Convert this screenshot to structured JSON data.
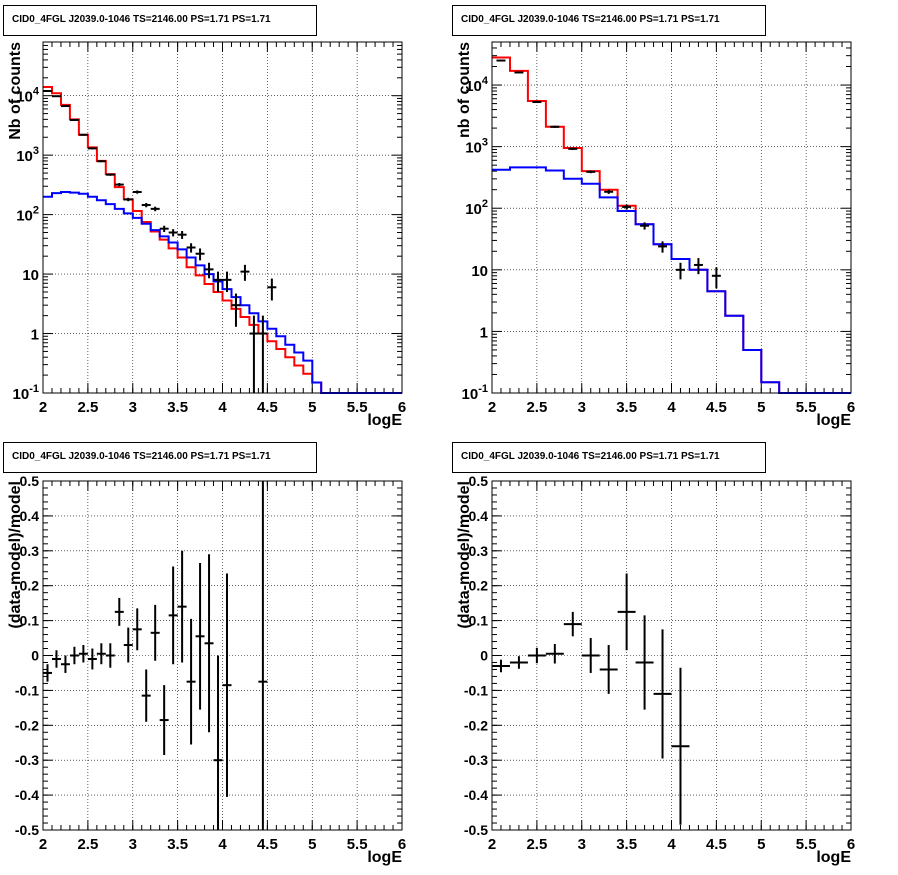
{
  "panels": [
    {
      "title": "CID0_4FGL J2039.0-1046 TS=2146.00 PS=1.71 PS=1.71"
    },
    {
      "title": "CID0_4FGL J2039.0-1046 TS=2146.00 PS=1.71 PS=1.71"
    },
    {
      "title": "CID0_4FGL J2039.0-1046 TS=2146.00 PS=1.71 PS=1.71"
    },
    {
      "title": "CID0_4FGL J2039.0-1046 TS=2146.00 PS=1.71 PS=1.71"
    }
  ],
  "colors": {
    "total_model": "#ff0000",
    "component_model": "#0000ff",
    "data": "#000000"
  },
  "chart_data": [
    {
      "type": "line",
      "title": "CID0_4FGL J2039.0-1046 TS=2146.00 PS=1.71 PS=1.71",
      "xlabel": "logE",
      "ylabel": "Nb of counts",
      "xlim": [
        2,
        6
      ],
      "ylim": [
        0.1,
        80000
      ],
      "yscale": "log",
      "grid": true,
      "x_ticks": [
        "2",
        "2.5",
        "3",
        "3.5",
        "4",
        "4.5",
        "5",
        "5.5",
        "6"
      ],
      "y_ticks": [
        "10^-1",
        "1",
        "10",
        "10^2",
        "10^3",
        "10^4"
      ],
      "bin_edges": [
        2.0,
        2.1,
        2.2,
        2.3,
        2.4,
        2.5,
        2.6,
        2.7,
        2.8,
        2.9,
        3.0,
        3.1,
        3.2,
        3.3,
        3.4,
        3.5,
        3.6,
        3.7,
        3.8,
        3.9,
        4.0,
        4.1,
        4.2,
        4.3,
        4.4,
        4.5,
        4.6,
        4.7,
        4.8,
        4.9,
        5.0,
        5.1,
        5.2,
        5.3,
        5.4,
        5.5,
        5.6,
        5.7,
        5.8,
        5.9,
        6.0
      ],
      "series": [
        {
          "values": [
            14000,
            11000,
            7000,
            4000,
            2200,
            1350,
            800,
            480,
            290,
            180,
            115,
            75,
            52,
            38,
            27,
            19,
            13,
            9.5,
            6.8,
            5,
            3.6,
            2.6,
            1.9,
            1.4,
            1.0,
            0.74,
            0.55,
            0.4,
            0.29,
            0.21,
            0.15,
            0.1,
            0.1,
            0.1,
            0.1,
            0.1,
            0.1,
            0.1,
            0.1,
            0.1
          ]
        },
        {
          "values": [
            200,
            230,
            240,
            235,
            225,
            200,
            175,
            150,
            125,
            105,
            88,
            70,
            55,
            43,
            34,
            26,
            19,
            14,
            10,
            7.5,
            5.6,
            4.1,
            3.0,
            2.2,
            1.6,
            1.2,
            0.9,
            0.65,
            0.48,
            0.35,
            0.15,
            0.1,
            0.1,
            0.1,
            0.1,
            0.1,
            0.1,
            0.1,
            0.1,
            0.1
          ]
        }
      ],
      "data_points": [
        {
          "x": 2.05,
          "y": 12000,
          "lo": 11800,
          "hi": 12200
        },
        {
          "x": 2.15,
          "y": 9800,
          "lo": 9600,
          "hi": 10000
        },
        {
          "x": 2.25,
          "y": 6700,
          "lo": 6550,
          "hi": 6850
        },
        {
          "x": 2.35,
          "y": 3900,
          "lo": 3800,
          "hi": 4000
        },
        {
          "x": 2.45,
          "y": 2200,
          "lo": 2130,
          "hi": 2270
        },
        {
          "x": 2.55,
          "y": 1300,
          "lo": 1250,
          "hi": 1350
        },
        {
          "x": 2.65,
          "y": 790,
          "lo": 760,
          "hi": 820
        },
        {
          "x": 2.75,
          "y": 470,
          "lo": 450,
          "hi": 490
        },
        {
          "x": 2.85,
          "y": 320,
          "lo": 300,
          "hi": 340
        },
        {
          "x": 2.95,
          "y": 180,
          "lo": 168,
          "hi": 192
        },
        {
          "x": 3.05,
          "y": 240,
          "lo": 225,
          "hi": 255
        },
        {
          "x": 3.15,
          "y": 145,
          "lo": 133,
          "hi": 157
        },
        {
          "x": 3.25,
          "y": 125,
          "lo": 114,
          "hi": 136
        },
        {
          "x": 3.35,
          "y": 58,
          "lo": 51,
          "hi": 65
        },
        {
          "x": 3.45,
          "y": 50,
          "lo": 43,
          "hi": 57
        },
        {
          "x": 3.55,
          "y": 46,
          "lo": 39,
          "hi": 53
        },
        {
          "x": 3.65,
          "y": 28,
          "lo": 23,
          "hi": 33
        },
        {
          "x": 3.75,
          "y": 22,
          "lo": 17,
          "hi": 27
        },
        {
          "x": 3.85,
          "y": 12,
          "lo": 8.5,
          "hi": 15.5
        },
        {
          "x": 3.95,
          "y": 8,
          "lo": 5,
          "hi": 11
        },
        {
          "x": 4.05,
          "y": 8,
          "lo": 5,
          "hi": 11
        },
        {
          "x": 4.15,
          "y": 3,
          "lo": 1.3,
          "hi": 4.7
        },
        {
          "x": 4.25,
          "y": 11,
          "lo": 7.7,
          "hi": 14.3
        },
        {
          "x": 4.35,
          "y": 1,
          "lo": 0.1,
          "hi": 2
        },
        {
          "x": 4.45,
          "y": 1,
          "lo": 0.1,
          "hi": 2
        },
        {
          "x": 4.55,
          "y": 6,
          "lo": 3.6,
          "hi": 8.4
        }
      ]
    },
    {
      "type": "line",
      "title": "CID0_4FGL J2039.0-1046 TS=2146.00 PS=1.71 PS=1.71",
      "xlabel": "logE",
      "ylabel": "nb of counts",
      "xlim": [
        2,
        6
      ],
      "ylim": [
        0.1,
        50000
      ],
      "yscale": "log",
      "grid": true,
      "x_ticks": [
        "2",
        "2.5",
        "3",
        "3.5",
        "4",
        "4.5",
        "5",
        "5.5",
        "6"
      ],
      "y_ticks": [
        "10^-1",
        "1",
        "10",
        "10^2",
        "10^3",
        "10^4"
      ],
      "bin_edges": [
        2.0,
        2.2,
        2.4,
        2.6,
        2.8,
        3.0,
        3.2,
        3.4,
        3.6,
        3.8,
        4.0,
        4.2,
        4.4,
        4.6,
        4.8,
        5.0,
        5.2,
        5.4,
        5.6,
        5.8,
        6.0
      ],
      "series": [
        {
          "values": [
            28000,
            17000,
            5500,
            2100,
            950,
            400,
            200,
            110,
            55,
            26,
            15,
            10,
            4.5,
            1.8,
            0.5,
            0.15,
            0.1,
            0.1,
            0.1,
            0.1
          ]
        },
        {
          "values": [
            420,
            460,
            460,
            410,
            300,
            250,
            150,
            90,
            55,
            26,
            15,
            10,
            4.5,
            1.8,
            0.5,
            0.15,
            0.1,
            0.1,
            0.1,
            0.1
          ]
        }
      ],
      "data_points": [
        {
          "x": 2.1,
          "y": 25000,
          "lo": 24700,
          "hi": 25300
        },
        {
          "x": 2.3,
          "y": 16000,
          "lo": 15750,
          "hi": 16250
        },
        {
          "x": 2.5,
          "y": 5300,
          "lo": 5150,
          "hi": 5450
        },
        {
          "x": 2.7,
          "y": 2100,
          "lo": 2010,
          "hi": 2190
        },
        {
          "x": 2.9,
          "y": 920,
          "lo": 880,
          "hi": 960
        },
        {
          "x": 3.1,
          "y": 390,
          "lo": 370,
          "hi": 410
        },
        {
          "x": 3.3,
          "y": 185,
          "lo": 171,
          "hi": 199
        },
        {
          "x": 3.5,
          "y": 105,
          "lo": 95,
          "hi": 115
        },
        {
          "x": 3.7,
          "y": 52,
          "lo": 45,
          "hi": 59
        },
        {
          "x": 3.9,
          "y": 24,
          "lo": 19,
          "hi": 29
        },
        {
          "x": 4.1,
          "y": 10,
          "lo": 7,
          "hi": 13
        },
        {
          "x": 4.3,
          "y": 12,
          "lo": 8.5,
          "hi": 15.5
        },
        {
          "x": 4.5,
          "y": 8,
          "lo": 5,
          "hi": 11
        }
      ]
    },
    {
      "type": "scatter",
      "title": "CID0_4FGL J2039.0-1046 TS=2146.00 PS=1.71 PS=1.71",
      "xlabel": "logE",
      "ylabel": "(data-model)/model",
      "xlim": [
        2,
        6
      ],
      "ylim": [
        -0.5,
        0.5
      ],
      "grid": true,
      "x_ticks": [
        "2",
        "2.5",
        "3",
        "3.5",
        "4",
        "4.5",
        "5",
        "5.5",
        "6"
      ],
      "y_ticks": [
        "-0.5",
        "-0.4",
        "-0.3",
        "-0.2",
        "-0.1",
        "0",
        "0.1",
        "0.2",
        "0.3",
        "0.4",
        "0.5"
      ],
      "data_points": [
        {
          "x": 2.05,
          "y": -0.05,
          "err": 0.025,
          "xerr": 0.05
        },
        {
          "x": 2.15,
          "y": -0.01,
          "err": 0.025,
          "xerr": 0.05
        },
        {
          "x": 2.25,
          "y": -0.025,
          "err": 0.025,
          "xerr": 0.05
        },
        {
          "x": 2.35,
          "y": 0.0,
          "err": 0.025,
          "xerr": 0.05
        },
        {
          "x": 2.45,
          "y": 0.005,
          "err": 0.025,
          "xerr": 0.05
        },
        {
          "x": 2.55,
          "y": -0.01,
          "err": 0.03,
          "xerr": 0.05
        },
        {
          "x": 2.65,
          "y": 0.005,
          "err": 0.03,
          "xerr": 0.05
        },
        {
          "x": 2.75,
          "y": 0.0,
          "err": 0.035,
          "xerr": 0.05
        },
        {
          "x": 2.85,
          "y": 0.125,
          "err": 0.04,
          "xerr": 0.05
        },
        {
          "x": 2.95,
          "y": 0.03,
          "err": 0.05,
          "xerr": 0.05
        },
        {
          "x": 3.05,
          "y": 0.075,
          "err": 0.06,
          "xerr": 0.05
        },
        {
          "x": 3.15,
          "y": -0.115,
          "err": 0.075,
          "xerr": 0.05
        },
        {
          "x": 3.25,
          "y": 0.065,
          "err": 0.08,
          "xerr": 0.05
        },
        {
          "x": 3.35,
          "y": -0.185,
          "err": 0.1,
          "xerr": 0.05
        },
        {
          "x": 3.45,
          "y": 0.115,
          "err": 0.14,
          "xerr": 0.05
        },
        {
          "x": 3.55,
          "y": 0.14,
          "err": 0.16,
          "xerr": 0.05
        },
        {
          "x": 3.65,
          "y": -0.075,
          "err": 0.18,
          "xerr": 0.05
        },
        {
          "x": 3.75,
          "y": 0.055,
          "err": 0.21,
          "xerr": 0.05
        },
        {
          "x": 3.85,
          "y": 0.035,
          "err": 0.255,
          "xerr": 0.05
        },
        {
          "x": 3.95,
          "y": -0.3,
          "err": 0.3,
          "xerr": 0.05
        },
        {
          "x": 4.05,
          "y": -0.085,
          "err": 0.32,
          "xerr": 0.05
        },
        {
          "x": 4.45,
          "y": -0.075,
          "err": 0.95,
          "xerr": 0.05
        }
      ]
    },
    {
      "type": "scatter",
      "title": "CID0_4FGL J2039.0-1046 TS=2146.00 PS=1.71 PS=1.71",
      "xlabel": "logE",
      "ylabel": "(data-model)/model",
      "xlim": [
        2,
        6
      ],
      "ylim": [
        -0.5,
        0.5
      ],
      "grid": true,
      "x_ticks": [
        "2",
        "2.5",
        "3",
        "3.5",
        "4",
        "4.5",
        "5",
        "5.5",
        "6"
      ],
      "y_ticks": [
        "-0.5",
        "-0.4",
        "-0.3",
        "-0.2",
        "-0.1",
        "0",
        "0.1",
        "0.2",
        "0.3",
        "0.4",
        "0.5"
      ],
      "data_points": [
        {
          "x": 2.1,
          "y": -0.03,
          "err": 0.018,
          "xerr": 0.1
        },
        {
          "x": 2.3,
          "y": -0.02,
          "err": 0.018,
          "xerr": 0.1
        },
        {
          "x": 2.5,
          "y": 0.0,
          "err": 0.022,
          "xerr": 0.1
        },
        {
          "x": 2.7,
          "y": 0.005,
          "err": 0.028,
          "xerr": 0.1
        },
        {
          "x": 2.9,
          "y": 0.09,
          "err": 0.035,
          "xerr": 0.1
        },
        {
          "x": 3.1,
          "y": 0.0,
          "err": 0.05,
          "xerr": 0.1
        },
        {
          "x": 3.3,
          "y": -0.04,
          "err": 0.07,
          "xerr": 0.1
        },
        {
          "x": 3.5,
          "y": 0.125,
          "err": 0.11,
          "xerr": 0.1
        },
        {
          "x": 3.7,
          "y": -0.02,
          "err": 0.135,
          "xerr": 0.1
        },
        {
          "x": 3.9,
          "y": -0.11,
          "err": 0.185,
          "xerr": 0.1
        },
        {
          "x": 4.1,
          "y": -0.26,
          "err": 0.225,
          "xerr": 0.1
        }
      ]
    }
  ]
}
